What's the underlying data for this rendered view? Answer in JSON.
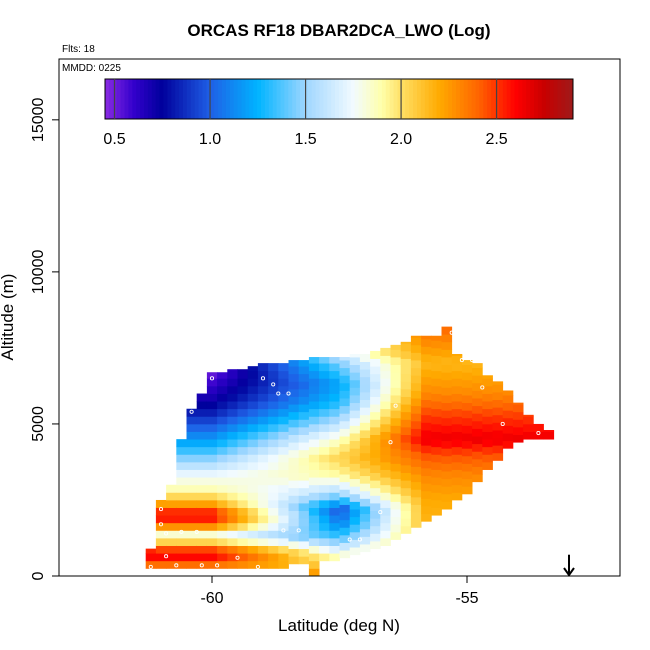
{
  "chart_data": {
    "type": "heatmap",
    "title": "ORCAS RF18 DBAR2DCA_LWO (Log)",
    "annotations": {
      "flights": "Flts: 18",
      "date": "MMDD: 0225"
    },
    "xlabel": "Latitude (deg N)",
    "ylabel": "Altitude (m)",
    "xlim": [
      -63.0,
      -52.0
    ],
    "ylim": [
      0,
      17000
    ],
    "xticks": [
      -60,
      -55
    ],
    "xtick_labels": [
      "-60",
      "-55"
    ],
    "yticks": [
      0,
      5000,
      10000,
      15000
    ],
    "ytick_labels": [
      "0",
      "5000",
      "10000",
      "15000"
    ],
    "colorbar": {
      "range": [
        0.45,
        2.9
      ],
      "ticks": [
        0.5,
        1.0,
        1.5,
        2.0,
        2.5
      ],
      "tick_labels": [
        "0.5",
        "1.0",
        "1.5",
        "2.0",
        "2.5"
      ],
      "placement": "top-inside",
      "colors": [
        {
          "v": 0.45,
          "c": "#8a2be2"
        },
        {
          "v": 0.6,
          "c": "#3300cc"
        },
        {
          "v": 0.75,
          "c": "#00009c"
        },
        {
          "v": 1.0,
          "c": "#1f5fe6"
        },
        {
          "v": 1.25,
          "c": "#00b4ff"
        },
        {
          "v": 1.5,
          "c": "#9fd6ff"
        },
        {
          "v": 1.75,
          "c": "#f2fbff"
        },
        {
          "v": 1.9,
          "c": "#ffffaa"
        },
        {
          "v": 2.0,
          "c": "#ffe066"
        },
        {
          "v": 2.2,
          "c": "#ffaa00"
        },
        {
          "v": 2.4,
          "c": "#ff6600"
        },
        {
          "v": 2.6,
          "c": "#ff0000"
        },
        {
          "v": 2.75,
          "c": "#c80000"
        },
        {
          "v": 2.9,
          "c": "#9e1a1a"
        }
      ]
    },
    "grid": false,
    "cell_size": {
      "lat": 0.2,
      "alt": 250
    },
    "column_ranges": [
      {
        "lat": -61.2,
        "bottom": 250,
        "top": 900
      },
      {
        "lat": -61.0,
        "bottom": 250,
        "top": 2500
      },
      {
        "lat": -60.8,
        "bottom": 250,
        "top": 3000
      },
      {
        "lat": -60.6,
        "bottom": 250,
        "top": 4500
      },
      {
        "lat": -60.4,
        "bottom": 250,
        "top": 5500
      },
      {
        "lat": -60.2,
        "bottom": 250,
        "top": 6000
      },
      {
        "lat": -60.0,
        "bottom": 250,
        "top": 6700
      },
      {
        "lat": -59.8,
        "bottom": 250,
        "top": 6700
      },
      {
        "lat": -59.6,
        "bottom": 250,
        "top": 6800
      },
      {
        "lat": -59.4,
        "bottom": 250,
        "top": 6800
      },
      {
        "lat": -59.2,
        "bottom": 250,
        "top": 6900
      },
      {
        "lat": -59.0,
        "bottom": 250,
        "top": 7000
      },
      {
        "lat": -58.8,
        "bottom": 250,
        "top": 7000
      },
      {
        "lat": -58.6,
        "bottom": 250,
        "top": 7000
      },
      {
        "lat": -58.4,
        "bottom": 400,
        "top": 7100
      },
      {
        "lat": -58.2,
        "bottom": 400,
        "top": 7100
      },
      {
        "lat": -58.0,
        "bottom": 0,
        "top": 7200
      },
      {
        "lat": -57.8,
        "bottom": 500,
        "top": 7200
      },
      {
        "lat": -57.6,
        "bottom": 500,
        "top": 7200
      },
      {
        "lat": -57.4,
        "bottom": 600,
        "top": 7200
      },
      {
        "lat": -57.2,
        "bottom": 700,
        "top": 7300
      },
      {
        "lat": -57.0,
        "bottom": 800,
        "top": 7300
      },
      {
        "lat": -56.8,
        "bottom": 900,
        "top": 7400
      },
      {
        "lat": -56.6,
        "bottom": 1000,
        "top": 7500
      },
      {
        "lat": -56.4,
        "bottom": 1200,
        "top": 7600
      },
      {
        "lat": -56.2,
        "bottom": 1400,
        "top": 7700
      },
      {
        "lat": -56.0,
        "bottom": 1600,
        "top": 7900
      },
      {
        "lat": -55.8,
        "bottom": 1800,
        "top": 7900
      },
      {
        "lat": -55.6,
        "bottom": 2000,
        "top": 7900
      },
      {
        "lat": -55.4,
        "bottom": 2200,
        "top": 8200
      },
      {
        "lat": -55.2,
        "bottom": 2500,
        "top": 7300
      },
      {
        "lat": -55.0,
        "bottom": 2700,
        "top": 7100
      },
      {
        "lat": -54.8,
        "bottom": 3100,
        "top": 7000
      },
      {
        "lat": -54.6,
        "bottom": 3500,
        "top": 6600
      },
      {
        "lat": -54.4,
        "bottom": 3800,
        "top": 6400
      },
      {
        "lat": -54.2,
        "bottom": 4200,
        "top": 6100
      },
      {
        "lat": -54.0,
        "bottom": 4400,
        "top": 5700
      },
      {
        "lat": -53.8,
        "bottom": 4500,
        "top": 5300
      },
      {
        "lat": -53.6,
        "bottom": 4500,
        "top": 5000
      },
      {
        "lat": -53.4,
        "bottom": 4500,
        "top": 4800
      }
    ],
    "value_profiles": {
      "south": [
        {
          "alt": 0,
          "v": 2.3
        },
        {
          "alt": 500,
          "v": 2.4
        },
        {
          "alt": 700,
          "v": 2.7
        },
        {
          "alt": 1000,
          "v": 2.3
        },
        {
          "alt": 1300,
          "v": 1.7
        },
        {
          "alt": 1700,
          "v": 2.4
        },
        {
          "alt": 2000,
          "v": 2.65
        },
        {
          "alt": 2400,
          "v": 2.2
        },
        {
          "alt": 2800,
          "v": 1.9
        },
        {
          "alt": 3300,
          "v": 1.75
        },
        {
          "alt": 3800,
          "v": 1.5
        },
        {
          "alt": 4300,
          "v": 1.25
        },
        {
          "alt": 4800,
          "v": 1.05
        },
        {
          "alt": 5300,
          "v": 0.85
        },
        {
          "alt": 5800,
          "v": 0.7
        },
        {
          "alt": 6300,
          "v": 0.6
        },
        {
          "alt": 6700,
          "v": 0.5
        }
      ],
      "middle": [
        {
          "alt": 0,
          "v": 2.3
        },
        {
          "alt": 700,
          "v": 1.8
        },
        {
          "alt": 1200,
          "v": 1.4
        },
        {
          "alt": 1700,
          "v": 1.1
        },
        {
          "alt": 2200,
          "v": 0.95
        },
        {
          "alt": 2700,
          "v": 1.5
        },
        {
          "alt": 3300,
          "v": 1.9
        },
        {
          "alt": 3900,
          "v": 2.05
        },
        {
          "alt": 4500,
          "v": 1.85
        },
        {
          "alt": 5100,
          "v": 1.55
        },
        {
          "alt": 5700,
          "v": 1.3
        },
        {
          "alt": 6300,
          "v": 1.2
        },
        {
          "alt": 7000,
          "v": 1.45
        },
        {
          "alt": 7300,
          "v": 1.7
        }
      ],
      "north": [
        {
          "alt": 1500,
          "v": 2.15
        },
        {
          "alt": 2500,
          "v": 2.2
        },
        {
          "alt": 3300,
          "v": 2.3
        },
        {
          "alt": 4000,
          "v": 2.45
        },
        {
          "alt": 4500,
          "v": 2.65
        },
        {
          "alt": 5200,
          "v": 2.5
        },
        {
          "alt": 6000,
          "v": 2.3
        },
        {
          "alt": 7000,
          "v": 2.15
        },
        {
          "alt": 8200,
          "v": 2.4
        }
      ]
    },
    "sample_points": [
      {
        "lat": -61.0,
        "alt": 2200
      },
      {
        "lat": -61.0,
        "alt": 1700
      },
      {
        "lat": -60.9,
        "alt": 1400
      },
      {
        "lat": -60.6,
        "alt": 1450
      },
      {
        "lat": -60.3,
        "alt": 1450
      },
      {
        "lat": -60.9,
        "alt": 650
      },
      {
        "lat": -61.2,
        "alt": 300
      },
      {
        "lat": -60.7,
        "alt": 350
      },
      {
        "lat": -60.2,
        "alt": 350
      },
      {
        "lat": -59.9,
        "alt": 350
      },
      {
        "lat": -59.5,
        "alt": 600
      },
      {
        "lat": -59.1,
        "alt": 300
      },
      {
        "lat": -58.6,
        "alt": 1500
      },
      {
        "lat": -58.3,
        "alt": 1500
      },
      {
        "lat": -57.3,
        "alt": 1200
      },
      {
        "lat": -57.1,
        "alt": 1200
      },
      {
        "lat": -56.7,
        "alt": 2100
      },
      {
        "lat": -60.4,
        "alt": 5400
      },
      {
        "lat": -60.0,
        "alt": 6500
      },
      {
        "lat": -59.0,
        "alt": 6500
      },
      {
        "lat": -58.8,
        "alt": 6300
      },
      {
        "lat": -58.7,
        "alt": 6000
      },
      {
        "lat": -58.5,
        "alt": 6000
      },
      {
        "lat": -56.4,
        "alt": 5600
      },
      {
        "lat": -56.5,
        "alt": 4400
      },
      {
        "lat": -55.3,
        "alt": 8000
      },
      {
        "lat": -55.1,
        "alt": 7100
      },
      {
        "lat": -54.9,
        "alt": 7100
      },
      {
        "lat": -54.7,
        "alt": 6200
      },
      {
        "lat": -54.3,
        "alt": 5000
      },
      {
        "lat": -54.0,
        "alt": 4200
      },
      {
        "lat": -53.6,
        "alt": 4700
      }
    ],
    "marker": {
      "type": "arrow-down",
      "lat": -53.0,
      "alt_top": 700,
      "alt_bottom": 0
    }
  }
}
